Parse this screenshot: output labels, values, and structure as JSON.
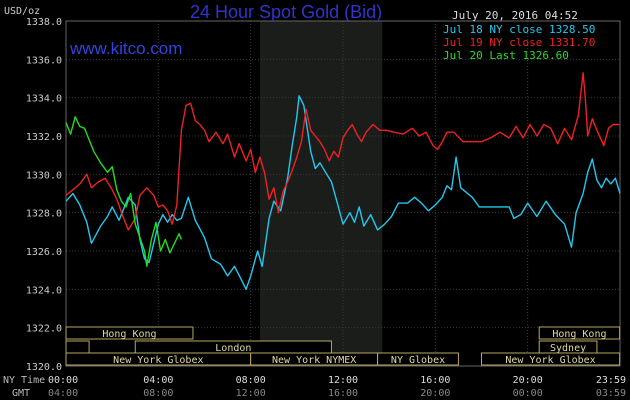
{
  "header": {
    "unit_label": "USD/oz",
    "title": "24 Hour Spot Gold (Bid)",
    "timestamp": "July 20, 2016 04:52",
    "website": "www.kitco.com"
  },
  "colors": {
    "background": "#000000",
    "plot_background": "#000000",
    "highlight_band": "#1b1d1b",
    "grid": "#3a3a3a",
    "axis_text": "#cccccc",
    "title": "#3333cc",
    "website": "#3344dd",
    "band_border": "#b8a860",
    "band_text": "#e0d8a0"
  },
  "legend": {
    "items": [
      {
        "label": "Jul 18 NY close 1328.50",
        "color": "#22c8ee"
      },
      {
        "label": "Jul 19 NY close 1331.70",
        "color": "#ee2222"
      },
      {
        "label": "Jul 20 Last 1326.60",
        "color": "#22dd22"
      }
    ]
  },
  "sessions": {
    "rows": [
      [
        {
          "label": "Hong Kong",
          "start": "00:00",
          "end": "05:30"
        },
        {
          "label": "Hong Kong",
          "start": "20:30",
          "end": "23:59"
        }
      ],
      [
        {
          "label": "",
          "start": "00:00",
          "end": "01:00"
        },
        {
          "label": "London",
          "start": "03:00",
          "end": "11:30"
        },
        {
          "label": "Sydney",
          "start": "20:30",
          "end": "23:00"
        }
      ],
      [
        {
          "label": "New York Globex",
          "start": "00:00",
          "end": "08:00"
        },
        {
          "label": "New York NYMEX",
          "start": "08:00",
          "end": "13:30"
        },
        {
          "label": "NY Globex",
          "start": "13:30",
          "end": "17:00"
        },
        {
          "label": "New York Globex",
          "start": "18:00",
          "end": "23:59"
        }
      ]
    ]
  },
  "time_labels": {
    "ny_time_label": "NY Time",
    "gmt_label": "GMT",
    "ny_ticks": [
      "00:00",
      "04:00",
      "08:00",
      "12:00",
      "16:00",
      "20:00",
      "23:59"
    ],
    "gmt_ticks": [
      "04:00",
      "08:00",
      "12:00",
      "16:00",
      "20:00",
      "00:00",
      "03:59"
    ]
  },
  "chart_data": {
    "type": "line",
    "title": "24 Hour Spot Gold (Bid)",
    "ylabel": "USD/oz",
    "xlabel": "NY Time",
    "x_unit": "hours since 00:00 NY time",
    "xlim": [
      0,
      24
    ],
    "ylim": [
      1320,
      1338
    ],
    "y_ticks": [
      1320,
      1322,
      1324,
      1326,
      1328,
      1330,
      1332,
      1334,
      1336,
      1338
    ],
    "x_ticks": [
      0,
      4,
      8,
      12,
      16,
      20,
      24
    ],
    "grid": true,
    "highlight_range_hours": [
      8.4,
      13.7
    ],
    "legend_position": "top-right",
    "series": [
      {
        "name": "Jul 18 NY close 1328.50",
        "color": "#22c8ee",
        "points": [
          [
            0,
            1328.6
          ],
          [
            0.3,
            1329.0
          ],
          [
            0.6,
            1328.4
          ],
          [
            0.9,
            1327.5
          ],
          [
            1.1,
            1326.4
          ],
          [
            1.5,
            1327.3
          ],
          [
            1.8,
            1327.8
          ],
          [
            2.0,
            1328.3
          ],
          [
            2.3,
            1327.6
          ],
          [
            2.7,
            1328.8
          ],
          [
            3.0,
            1328.4
          ],
          [
            3.2,
            1326.6
          ],
          [
            3.4,
            1325.6
          ],
          [
            3.6,
            1325.4
          ],
          [
            3.8,
            1326.4
          ],
          [
            4.0,
            1327.4
          ],
          [
            4.2,
            1327.9
          ],
          [
            4.4,
            1327.5
          ],
          [
            4.6,
            1327.9
          ],
          [
            4.8,
            1327.6
          ],
          [
            5.0,
            1327.7
          ],
          [
            5.3,
            1328.8
          ],
          [
            5.6,
            1327.6
          ],
          [
            6.0,
            1326.7
          ],
          [
            6.3,
            1325.6
          ],
          [
            6.7,
            1325.3
          ],
          [
            7.0,
            1324.7
          ],
          [
            7.3,
            1325.2
          ],
          [
            7.6,
            1324.5
          ],
          [
            7.8,
            1324.0
          ],
          [
            8.0,
            1324.7
          ],
          [
            8.3,
            1326.0
          ],
          [
            8.5,
            1325.2
          ],
          [
            8.8,
            1327.7
          ],
          [
            9.0,
            1328.6
          ],
          [
            9.3,
            1328.1
          ],
          [
            9.6,
            1329.8
          ],
          [
            9.8,
            1331.5
          ],
          [
            10.0,
            1333.0
          ],
          [
            10.1,
            1334.1
          ],
          [
            10.3,
            1333.6
          ],
          [
            10.6,
            1331.2
          ],
          [
            10.8,
            1330.3
          ],
          [
            11.0,
            1330.6
          ],
          [
            11.3,
            1330.0
          ],
          [
            11.5,
            1329.6
          ],
          [
            11.8,
            1328.3
          ],
          [
            12.0,
            1327.4
          ],
          [
            12.3,
            1328.0
          ],
          [
            12.5,
            1327.5
          ],
          [
            12.7,
            1328.3
          ],
          [
            12.9,
            1327.3
          ],
          [
            13.2,
            1327.9
          ],
          [
            13.5,
            1327.1
          ],
          [
            13.8,
            1327.4
          ],
          [
            14.1,
            1327.8
          ],
          [
            14.4,
            1328.5
          ],
          [
            14.8,
            1328.5
          ],
          [
            15.1,
            1328.8
          ],
          [
            15.4,
            1328.5
          ],
          [
            15.7,
            1328.1
          ],
          [
            16.0,
            1328.4
          ],
          [
            16.3,
            1328.8
          ],
          [
            16.5,
            1329.4
          ],
          [
            16.7,
            1329.2
          ],
          [
            16.9,
            1330.9
          ],
          [
            17.1,
            1329.3
          ],
          [
            17.3,
            1329.1
          ],
          [
            17.6,
            1328.8
          ],
          [
            17.9,
            1328.3
          ],
          [
            18.2,
            1328.3
          ],
          [
            18.8,
            1328.3
          ],
          [
            19.2,
            1328.3
          ],
          [
            19.4,
            1327.7
          ],
          [
            19.7,
            1327.9
          ],
          [
            20.0,
            1328.5
          ],
          [
            20.4,
            1327.8
          ],
          [
            20.8,
            1328.6
          ],
          [
            21.2,
            1327.9
          ],
          [
            21.6,
            1327.4
          ],
          [
            21.9,
            1326.2
          ],
          [
            22.1,
            1328.0
          ],
          [
            22.4,
            1329.0
          ],
          [
            22.6,
            1330.1
          ],
          [
            22.8,
            1330.8
          ],
          [
            23.0,
            1329.7
          ],
          [
            23.2,
            1329.3
          ],
          [
            23.4,
            1329.8
          ],
          [
            23.6,
            1329.5
          ],
          [
            23.8,
            1329.8
          ],
          [
            24.0,
            1329.0
          ]
        ]
      },
      {
        "name": "Jul 19 NY close 1331.70",
        "color": "#ee2222",
        "points": [
          [
            0,
            1328.9
          ],
          [
            0.3,
            1329.2
          ],
          [
            0.6,
            1329.5
          ],
          [
            0.9,
            1330.0
          ],
          [
            1.1,
            1329.3
          ],
          [
            1.4,
            1329.6
          ],
          [
            1.7,
            1329.8
          ],
          [
            2.0,
            1329.2
          ],
          [
            2.2,
            1328.7
          ],
          [
            2.5,
            1327.7
          ],
          [
            2.7,
            1327.1
          ],
          [
            3.0,
            1327.7
          ],
          [
            3.2,
            1328.9
          ],
          [
            3.5,
            1329.3
          ],
          [
            3.8,
            1328.9
          ],
          [
            4.0,
            1328.3
          ],
          [
            4.2,
            1328.4
          ],
          [
            4.4,
            1328.1
          ],
          [
            4.6,
            1327.4
          ],
          [
            4.8,
            1328.4
          ],
          [
            5.0,
            1332.3
          ],
          [
            5.2,
            1333.6
          ],
          [
            5.4,
            1333.7
          ],
          [
            5.6,
            1332.8
          ],
          [
            5.8,
            1332.6
          ],
          [
            6.0,
            1332.3
          ],
          [
            6.2,
            1331.7
          ],
          [
            6.5,
            1332.2
          ],
          [
            6.8,
            1331.6
          ],
          [
            7.0,
            1332.1
          ],
          [
            7.3,
            1330.9
          ],
          [
            7.5,
            1331.6
          ],
          [
            7.8,
            1330.7
          ],
          [
            8.0,
            1331.3
          ],
          [
            8.2,
            1330.1
          ],
          [
            8.4,
            1330.9
          ],
          [
            8.6,
            1330.1
          ],
          [
            8.8,
            1328.7
          ],
          [
            9.0,
            1329.3
          ],
          [
            9.2,
            1328.0
          ],
          [
            9.4,
            1329.1
          ],
          [
            9.6,
            1329.6
          ],
          [
            9.8,
            1330.2
          ],
          [
            10.0,
            1330.9
          ],
          [
            10.2,
            1331.7
          ],
          [
            10.4,
            1333.4
          ],
          [
            10.6,
            1332.3
          ],
          [
            10.8,
            1332.0
          ],
          [
            11.0,
            1331.7
          ],
          [
            11.2,
            1331.3
          ],
          [
            11.4,
            1330.7
          ],
          [
            11.6,
            1331.2
          ],
          [
            11.8,
            1330.9
          ],
          [
            12.0,
            1331.9
          ],
          [
            12.2,
            1332.3
          ],
          [
            12.4,
            1332.6
          ],
          [
            12.6,
            1332.1
          ],
          [
            12.8,
            1331.7
          ],
          [
            13.0,
            1332.2
          ],
          [
            13.3,
            1332.6
          ],
          [
            13.6,
            1332.3
          ],
          [
            13.9,
            1332.3
          ],
          [
            14.2,
            1332.2
          ],
          [
            14.6,
            1332.1
          ],
          [
            15.0,
            1332.4
          ],
          [
            15.3,
            1332.0
          ],
          [
            15.6,
            1332.2
          ],
          [
            15.9,
            1331.5
          ],
          [
            16.1,
            1331.3
          ],
          [
            16.3,
            1331.7
          ],
          [
            16.5,
            1332.2
          ],
          [
            16.8,
            1332.2
          ],
          [
            17.2,
            1331.7
          ],
          [
            17.6,
            1331.7
          ],
          [
            18.0,
            1331.7
          ],
          [
            18.4,
            1331.9
          ],
          [
            18.8,
            1332.2
          ],
          [
            19.2,
            1331.9
          ],
          [
            19.5,
            1332.5
          ],
          [
            19.8,
            1331.9
          ],
          [
            20.1,
            1332.6
          ],
          [
            20.4,
            1332.0
          ],
          [
            20.7,
            1332.6
          ],
          [
            21.0,
            1332.4
          ],
          [
            21.3,
            1331.6
          ],
          [
            21.6,
            1332.4
          ],
          [
            21.9,
            1331.8
          ],
          [
            22.2,
            1333.1
          ],
          [
            22.4,
            1335.3
          ],
          [
            22.5,
            1333.9
          ],
          [
            22.6,
            1332.0
          ],
          [
            22.8,
            1332.9
          ],
          [
            23.0,
            1332.3
          ],
          [
            23.3,
            1331.5
          ],
          [
            23.5,
            1332.4
          ],
          [
            23.7,
            1332.6
          ],
          [
            24.0,
            1332.6
          ]
        ]
      },
      {
        "name": "Jul 20 Last 1326.60",
        "color": "#22dd22",
        "points": [
          [
            0,
            1332.7
          ],
          [
            0.2,
            1332.1
          ],
          [
            0.4,
            1333.0
          ],
          [
            0.6,
            1332.5
          ],
          [
            0.8,
            1332.4
          ],
          [
            1.0,
            1331.8
          ],
          [
            1.2,
            1331.2
          ],
          [
            1.5,
            1330.6
          ],
          [
            1.8,
            1330.1
          ],
          [
            2.0,
            1330.4
          ],
          [
            2.2,
            1329.2
          ],
          [
            2.4,
            1328.6
          ],
          [
            2.6,
            1328.3
          ],
          [
            2.8,
            1329.0
          ],
          [
            3.0,
            1327.4
          ],
          [
            3.2,
            1326.7
          ],
          [
            3.4,
            1326.0
          ],
          [
            3.5,
            1325.2
          ],
          [
            3.7,
            1326.6
          ],
          [
            3.9,
            1327.5
          ],
          [
            4.1,
            1326.0
          ],
          [
            4.3,
            1326.6
          ],
          [
            4.5,
            1325.9
          ],
          [
            4.7,
            1326.4
          ],
          [
            4.9,
            1326.9
          ],
          [
            5.0,
            1326.6
          ]
        ]
      }
    ]
  }
}
